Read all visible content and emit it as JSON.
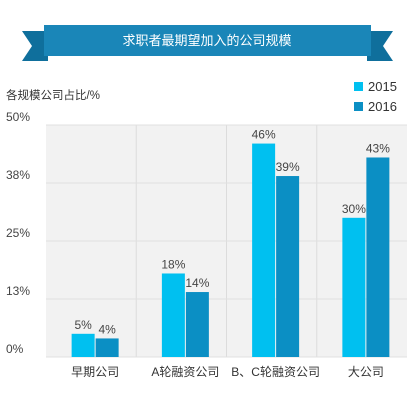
{
  "chart_data": {
    "type": "bar",
    "title": "求职者最期望加入的公司规模",
    "ylabel": "各规模公司占比/%",
    "xlabel": "",
    "categories": [
      "早期公司",
      "A轮融资公司",
      "B、C轮融资公司",
      "大公司"
    ],
    "series": [
      {
        "name": "2015",
        "values": [
          5,
          18,
          46,
          30
        ],
        "labels": [
          "5%",
          "18%",
          "46%",
          "30%"
        ],
        "color": "#00c0f0"
      },
      {
        "name": "2016",
        "values": [
          4,
          14,
          39,
          43
        ],
        "labels": [
          "4%",
          "14%",
          "39%",
          "43%"
        ],
        "color": "#0b8fc4"
      }
    ],
    "ylim": [
      0,
      50
    ],
    "yticks": [
      0,
      12.5,
      25,
      37.5,
      50
    ],
    "ytick_labels": [
      "0%",
      "13%",
      "25%",
      "38%",
      "50%"
    ],
    "grid": true,
    "legend_position": "top-right",
    "banner_color": "#1a86b8"
  }
}
